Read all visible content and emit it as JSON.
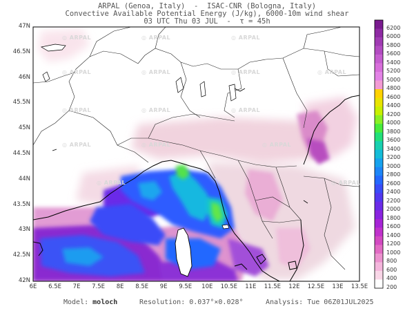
{
  "header": {
    "line1": "ARPAL (Genoa, Italy)  -  ISAC-CNR (Bologna, Italy)",
    "line2": "Convective Available Potential Energy (J/kg), 6000-10m wind shear",
    "line3": "03 UTC Thu 03 JUL  -  τ = 45h"
  },
  "axes": {
    "lat_labels": [
      "47N",
      "46.5N",
      "46N",
      "45.5N",
      "45N",
      "44.5N",
      "44N",
      "43.5N",
      "43N",
      "42.5N",
      "42N"
    ],
    "lon_labels": [
      "6E",
      "6.5E",
      "7E",
      "7.5E",
      "8E",
      "8.5E",
      "9E",
      "9.5E",
      "10E",
      "10.5E",
      "11E",
      "11.5E",
      "12E",
      "12.5E",
      "13E",
      "13.5E"
    ]
  },
  "colorbar": {
    "labels": [
      "6200",
      "6000",
      "5800",
      "5600",
      "5400",
      "5200",
      "5000",
      "4800",
      "4600",
      "4400",
      "4200",
      "4000",
      "3800",
      "3600",
      "3400",
      "3200",
      "3000",
      "2800",
      "2600",
      "2400",
      "2200",
      "2000",
      "1800",
      "1600",
      "1400",
      "1200",
      "1000",
      "800",
      "600",
      "400",
      "200"
    ],
    "colors": [
      "#7a1b8f",
      "#8e2aa3",
      "#a03bb3",
      "#b34cc2",
      "#c65ed0",
      "#d86fdb",
      "#e383e6",
      "#f39bd4",
      "#ffd200",
      "#e8e400",
      "#c8f000",
      "#8af024",
      "#48ec3c",
      "#22e07a",
      "#18d0b0",
      "#14bcd8",
      "#16a2ee",
      "#1d86f8",
      "#2468ff",
      "#3a4cf8",
      "#5238f0",
      "#6b2ce8",
      "#8a24e0",
      "#a624d6",
      "#c032cc",
      "#d34ac2",
      "#e26bc4",
      "#ec92cf",
      "#f4b6dc",
      "#f9d6e7",
      "#ffffff"
    ]
  },
  "watermark": "ARPAL",
  "footer": {
    "model_label": "Model:",
    "model_value": "moloch",
    "resolution_label": "Resolution:",
    "resolution_value": "0.037°×0.028°",
    "analysis_label": "Analysis:",
    "analysis_value": "Tue 06Z01JUL2025"
  }
}
